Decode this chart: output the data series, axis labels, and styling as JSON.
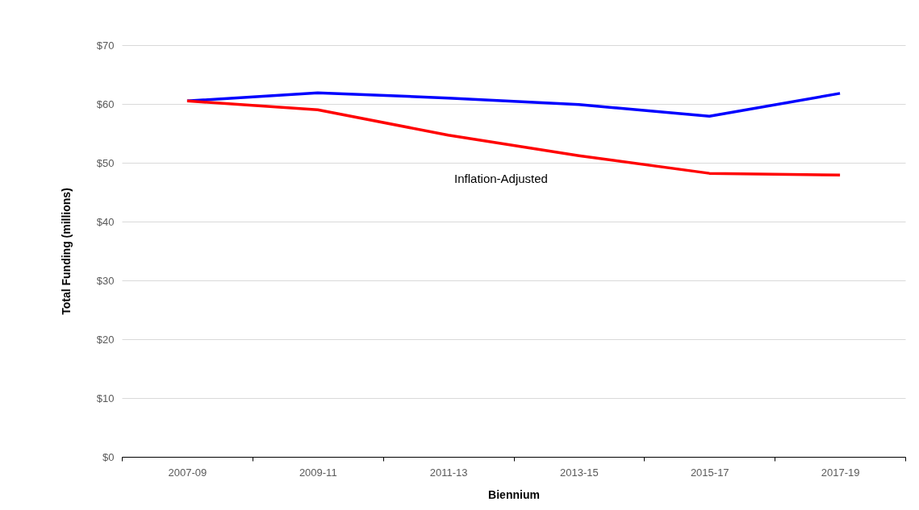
{
  "chart_data": {
    "type": "line",
    "xlabel": "Biennium",
    "ylabel": "Total Funding (millions)",
    "categories": [
      "2007-09",
      "2009-11",
      "2011-13",
      "2013-15",
      "2015-17",
      "2017-19"
    ],
    "series": [
      {
        "color": "#0000ff",
        "values": [
          60.5,
          61.9,
          61.0,
          59.9,
          57.9,
          61.8
        ]
      },
      {
        "color": "#ff0000",
        "values": [
          60.5,
          59.0,
          54.7,
          51.2,
          48.2,
          47.9
        ]
      }
    ],
    "ylim": [
      0,
      70
    ],
    "yticks": [
      {
        "value": 0,
        "label": "$0"
      },
      {
        "value": 10,
        "label": "$10"
      },
      {
        "value": 20,
        "label": "$20"
      },
      {
        "value": 30,
        "label": "$30"
      },
      {
        "value": 40,
        "label": "$40"
      },
      {
        "value": 50,
        "label": "$50"
      },
      {
        "value": 60,
        "label": "$60"
      },
      {
        "value": 70,
        "label": "$70"
      }
    ],
    "grid": "y",
    "marker": "none",
    "line_style": "solid",
    "annotations": [
      "Inflation-Adjusted"
    ]
  }
}
